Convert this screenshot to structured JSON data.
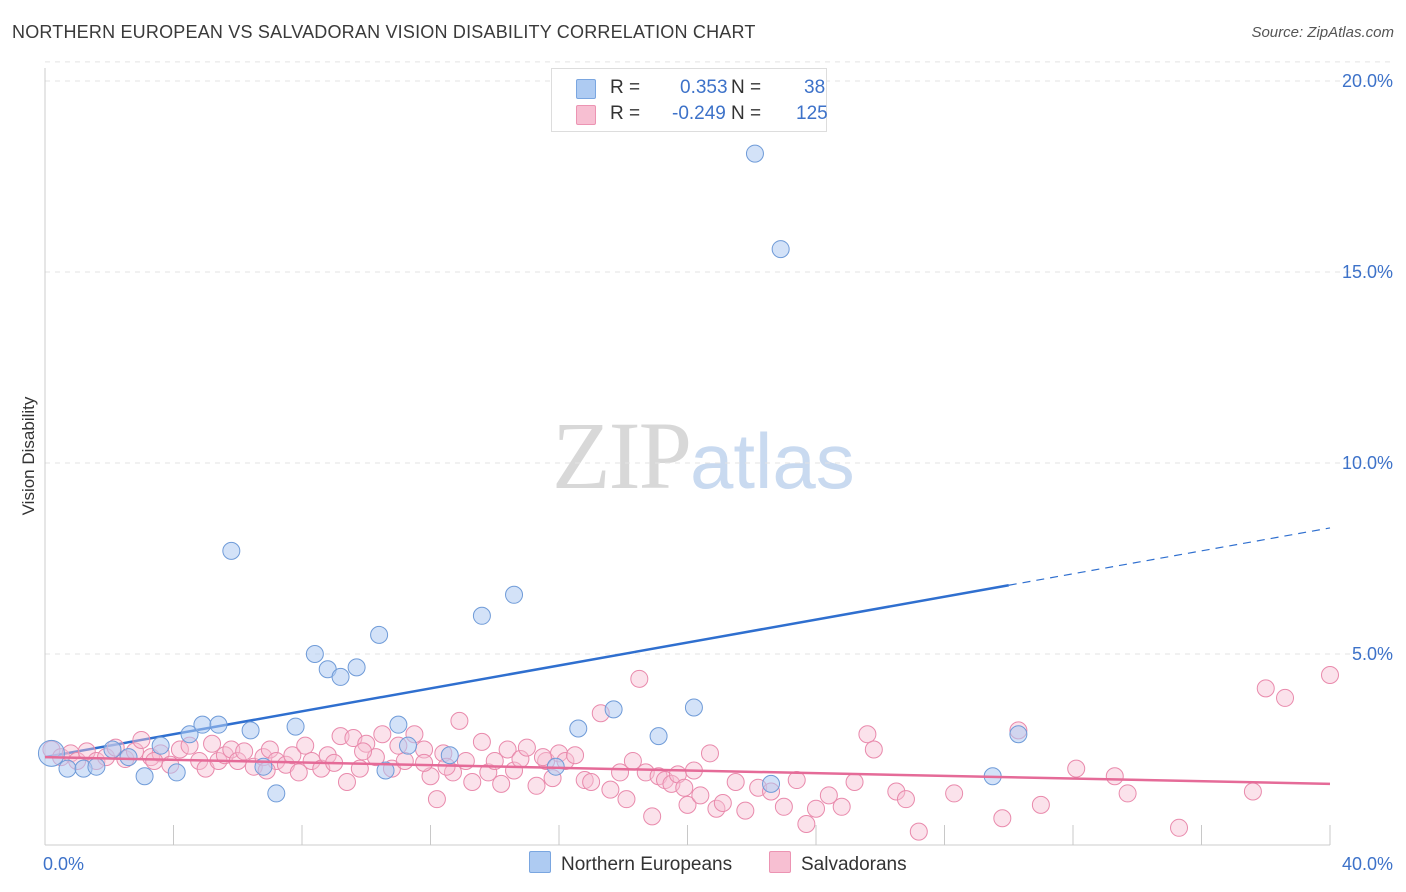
{
  "title": "NORTHERN EUROPEAN VS SALVADORAN VISION DISABILITY CORRELATION CHART",
  "source": "Source: ZipAtlas.com",
  "watermark": {
    "zip": "ZIP",
    "atlas": "atlas"
  },
  "legend": {
    "r_label": "R =",
    "n_label": "N =",
    "series": [
      {
        "name": "Northern Europeans",
        "r": "0.353",
        "n": "38",
        "fill": "#aecbf2",
        "stroke": "#7aa6e0"
      },
      {
        "name": "Salvadorans",
        "r": "-0.249",
        "n": "125",
        "fill": "#f7bfd2",
        "stroke": "#ec94b3"
      }
    ]
  },
  "colors": {
    "blue_point_fill": "rgba(174,203,242,0.55)",
    "blue_point_stroke": "#6f9bd8",
    "blue_line": "#2f6fcf",
    "pink_point_fill": "rgba(247,191,210,0.45)",
    "pink_point_stroke": "#e98aac",
    "pink_line": "#e56b98",
    "grid": "#e3e3e3",
    "axis_label": "#3d72c9"
  },
  "chart_data": {
    "type": "scatter",
    "title": "NORTHERN EUROPEAN VS SALVADORAN VISION DISABILITY CORRELATION CHART",
    "xlabel": "",
    "ylabel": "Vision Disability",
    "xlim": [
      0,
      40
    ],
    "ylim": [
      0,
      21
    ],
    "x_tick_labels": [
      "0.0%",
      "40.0%"
    ],
    "y_ticks": [
      5,
      10,
      15,
      20
    ],
    "y_tick_labels": [
      "5.0%",
      "10.0%",
      "15.0%",
      "20.0%"
    ],
    "grid": true,
    "legend_position": "top-center",
    "series": [
      {
        "name": "Northern Europeans",
        "r": 0.353,
        "n": 38,
        "points": [
          [
            0.2,
            2.4
          ],
          [
            0.7,
            2.0
          ],
          [
            1.2,
            2.0
          ],
          [
            1.6,
            2.05
          ],
          [
            2.1,
            2.5
          ],
          [
            2.6,
            2.3
          ],
          [
            3.1,
            1.8
          ],
          [
            3.6,
            2.6
          ],
          [
            4.1,
            1.9
          ],
          [
            4.5,
            2.9
          ],
          [
            4.9,
            3.15
          ],
          [
            5.4,
            3.15
          ],
          [
            5.8,
            7.7
          ],
          [
            6.4,
            3.0
          ],
          [
            6.8,
            2.05
          ],
          [
            7.2,
            1.35
          ],
          [
            7.8,
            3.1
          ],
          [
            8.4,
            5.0
          ],
          [
            8.8,
            4.6
          ],
          [
            9.2,
            4.4
          ],
          [
            9.7,
            4.65
          ],
          [
            10.4,
            5.5
          ],
          [
            10.6,
            1.95
          ],
          [
            11.0,
            3.15
          ],
          [
            11.3,
            2.6
          ],
          [
            12.6,
            2.35
          ],
          [
            13.6,
            6.0
          ],
          [
            14.6,
            6.55
          ],
          [
            15.9,
            2.05
          ],
          [
            16.6,
            3.05
          ],
          [
            17.7,
            3.55
          ],
          [
            19.1,
            2.85
          ],
          [
            20.2,
            3.6
          ],
          [
            22.1,
            18.1
          ],
          [
            22.6,
            1.6
          ],
          [
            22.9,
            15.6
          ],
          [
            29.5,
            1.8
          ],
          [
            30.3,
            2.9
          ]
        ],
        "trend": {
          "x": [
            0,
            30
          ],
          "y": [
            2.3,
            6.8
          ],
          "dashed_extension_to": [
            40,
            8.3
          ]
        }
      },
      {
        "name": "Salvadorans",
        "r": -0.249,
        "n": 125,
        "trend": {
          "x": [
            0,
            40
          ],
          "y": [
            2.3,
            1.6
          ]
        },
        "points": [
          [
            0.2,
            2.5
          ],
          [
            0.5,
            2.3
          ],
          [
            0.8,
            2.4
          ],
          [
            1.0,
            2.2
          ],
          [
            1.3,
            2.45
          ],
          [
            1.6,
            2.2
          ],
          [
            1.9,
            2.3
          ],
          [
            2.2,
            2.55
          ],
          [
            2.5,
            2.25
          ],
          [
            2.8,
            2.45
          ],
          [
            3.0,
            2.75
          ],
          [
            3.3,
            2.3
          ],
          [
            3.6,
            2.4
          ],
          [
            3.9,
            2.1
          ],
          [
            4.2,
            2.5
          ],
          [
            4.5,
            2.6
          ],
          [
            4.8,
            2.2
          ],
          [
            5.0,
            2.0
          ],
          [
            5.2,
            2.65
          ],
          [
            5.4,
            2.2
          ],
          [
            5.6,
            2.35
          ],
          [
            5.8,
            2.5
          ],
          [
            6.0,
            2.2
          ],
          [
            6.2,
            2.45
          ],
          [
            6.5,
            2.05
          ],
          [
            6.8,
            2.3
          ],
          [
            7.0,
            2.5
          ],
          [
            7.2,
            2.2
          ],
          [
            7.5,
            2.1
          ],
          [
            7.7,
            2.35
          ],
          [
            7.9,
            1.9
          ],
          [
            8.1,
            2.6
          ],
          [
            8.3,
            2.2
          ],
          [
            8.6,
            2.0
          ],
          [
            8.8,
            2.35
          ],
          [
            9.0,
            2.15
          ],
          [
            9.2,
            2.85
          ],
          [
            9.4,
            1.65
          ],
          [
            9.6,
            2.8
          ],
          [
            9.8,
            2.0
          ],
          [
            10.0,
            2.65
          ],
          [
            10.3,
            2.3
          ],
          [
            10.5,
            2.9
          ],
          [
            10.8,
            2.0
          ],
          [
            11.0,
            2.6
          ],
          [
            11.2,
            2.2
          ],
          [
            11.5,
            2.9
          ],
          [
            11.8,
            2.5
          ],
          [
            12.0,
            1.8
          ],
          [
            12.2,
            1.2
          ],
          [
            12.4,
            2.4
          ],
          [
            12.7,
            1.9
          ],
          [
            12.9,
            3.25
          ],
          [
            13.1,
            2.2
          ],
          [
            13.3,
            1.65
          ],
          [
            13.6,
            2.7
          ],
          [
            13.8,
            1.9
          ],
          [
            14.0,
            2.2
          ],
          [
            14.2,
            1.6
          ],
          [
            14.4,
            2.5
          ],
          [
            14.6,
            1.95
          ],
          [
            14.8,
            2.25
          ],
          [
            15.0,
            2.55
          ],
          [
            15.3,
            1.55
          ],
          [
            15.6,
            2.2
          ],
          [
            15.8,
            1.75
          ],
          [
            16.0,
            2.4
          ],
          [
            16.2,
            2.2
          ],
          [
            16.5,
            2.35
          ],
          [
            16.8,
            1.7
          ],
          [
            17.0,
            1.65
          ],
          [
            17.3,
            3.45
          ],
          [
            17.6,
            1.45
          ],
          [
            17.9,
            1.9
          ],
          [
            18.1,
            1.2
          ],
          [
            18.3,
            2.2
          ],
          [
            18.5,
            4.35
          ],
          [
            18.7,
            1.9
          ],
          [
            18.9,
            0.75
          ],
          [
            19.1,
            1.8
          ],
          [
            19.3,
            1.7
          ],
          [
            19.5,
            1.6
          ],
          [
            19.7,
            1.85
          ],
          [
            20.0,
            1.05
          ],
          [
            20.2,
            1.95
          ],
          [
            20.4,
            1.3
          ],
          [
            20.7,
            2.4
          ],
          [
            20.9,
            0.95
          ],
          [
            21.1,
            1.1
          ],
          [
            21.5,
            1.65
          ],
          [
            21.8,
            0.9
          ],
          [
            22.2,
            1.5
          ],
          [
            22.6,
            1.4
          ],
          [
            23.0,
            1.0
          ],
          [
            23.4,
            1.7
          ],
          [
            23.7,
            0.55
          ],
          [
            24.0,
            0.95
          ],
          [
            24.4,
            1.3
          ],
          [
            24.8,
            1.0
          ],
          [
            25.2,
            1.65
          ],
          [
            25.6,
            2.9
          ],
          [
            25.8,
            2.5
          ],
          [
            26.5,
            1.4
          ],
          [
            26.8,
            1.2
          ],
          [
            27.2,
            0.35
          ],
          [
            28.3,
            1.35
          ],
          [
            29.8,
            0.7
          ],
          [
            30.3,
            3.0
          ],
          [
            31.0,
            1.05
          ],
          [
            32.1,
            2.0
          ],
          [
            33.3,
            1.8
          ],
          [
            33.7,
            1.35
          ],
          [
            35.3,
            0.45
          ],
          [
            37.6,
            1.4
          ],
          [
            38.0,
            4.1
          ],
          [
            38.6,
            3.85
          ],
          [
            40.0,
            4.45
          ],
          [
            11.8,
            2.15
          ],
          [
            3.4,
            2.2
          ],
          [
            6.9,
            1.95
          ],
          [
            9.9,
            2.45
          ],
          [
            12.5,
            2.05
          ],
          [
            15.5,
            2.3
          ],
          [
            19.9,
            1.5
          ]
        ]
      }
    ]
  }
}
